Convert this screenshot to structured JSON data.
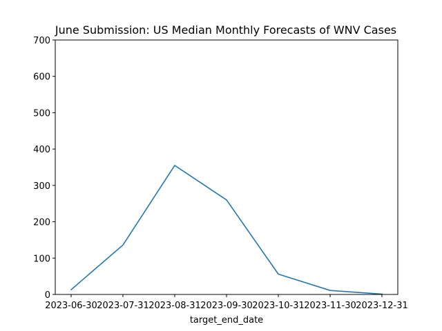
{
  "chart_data": {
    "type": "line",
    "title": "June Submission: US Median Monthly Forecasts of WNV Cases",
    "xlabel": "target_end_date",
    "ylabel": "",
    "categories": [
      "2023-06-30",
      "2023-07-31",
      "2023-08-31",
      "2023-09-30",
      "2023-10-31",
      "2023-11-30",
      "2023-12-31"
    ],
    "series": [
      {
        "values": [
          13,
          136,
          355,
          260,
          56,
          11,
          1
        ],
        "color": "#1f77b4"
      }
    ],
    "ylim": [
      0,
      700
    ],
    "yticks": [
      0,
      100,
      200,
      300,
      400,
      500,
      600,
      700
    ],
    "grid": false,
    "legend": "none"
  }
}
